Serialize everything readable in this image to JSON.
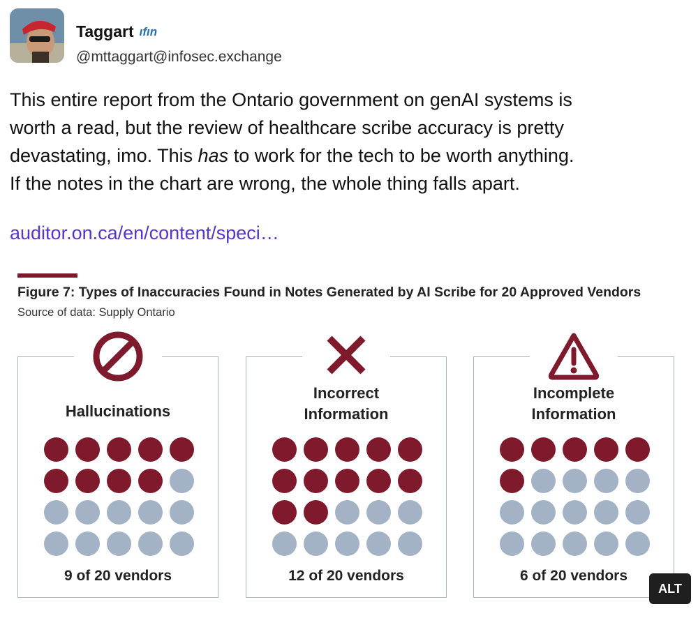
{
  "author": {
    "name": "Taggart",
    "badge": "ıfın",
    "handle": "@mttaggart@infosec.exchange"
  },
  "post": {
    "line1": "This entire report from the Ontario government on genAI systems is",
    "line2": "worth a read, but the review of healthcare scribe accuracy is pretty",
    "line3_before": "devastating, imo. This ",
    "line3_emphasis": "has",
    "line3_after": " to work for the tech to be worth anything.",
    "line4": "If the notes in the chart are wrong, the whole thing falls apart.",
    "link": "auditor.on.ca/en/content/speci…"
  },
  "figure": {
    "title": "Figure 7: Types of Inaccuracies Found in Notes Generated by AI Scribe for 20 Approved Vendors",
    "source": "Source of data: Supply Ontario",
    "accent_color": "#7e1a2c",
    "inactive_color": "#a3b2c4",
    "panels": [
      {
        "icon": "prohibited-icon",
        "label_lines": [
          "Hallucinations"
        ],
        "count": 9,
        "total": 20,
        "caption": "9 of 20 vendors"
      },
      {
        "icon": "x-mark-icon",
        "label_lines": [
          "Incorrect",
          "Information"
        ],
        "count": 12,
        "total": 20,
        "caption": "12 of 20 vendors"
      },
      {
        "icon": "warning-icon",
        "label_lines": [
          "Incomplete",
          "Information"
        ],
        "count": 6,
        "total": 20,
        "caption": "6 of 20 vendors"
      }
    ]
  },
  "chart_data": {
    "type": "table",
    "title": "Figure 7: Types of Inaccuracies Found in Notes Generated by AI Scribe for 20 Approved Vendors",
    "categories": [
      "Hallucinations",
      "Incorrect Information",
      "Incomplete Information"
    ],
    "values": [
      9,
      12,
      6
    ],
    "total": 20
  },
  "alt_button": {
    "label": "ALT"
  }
}
